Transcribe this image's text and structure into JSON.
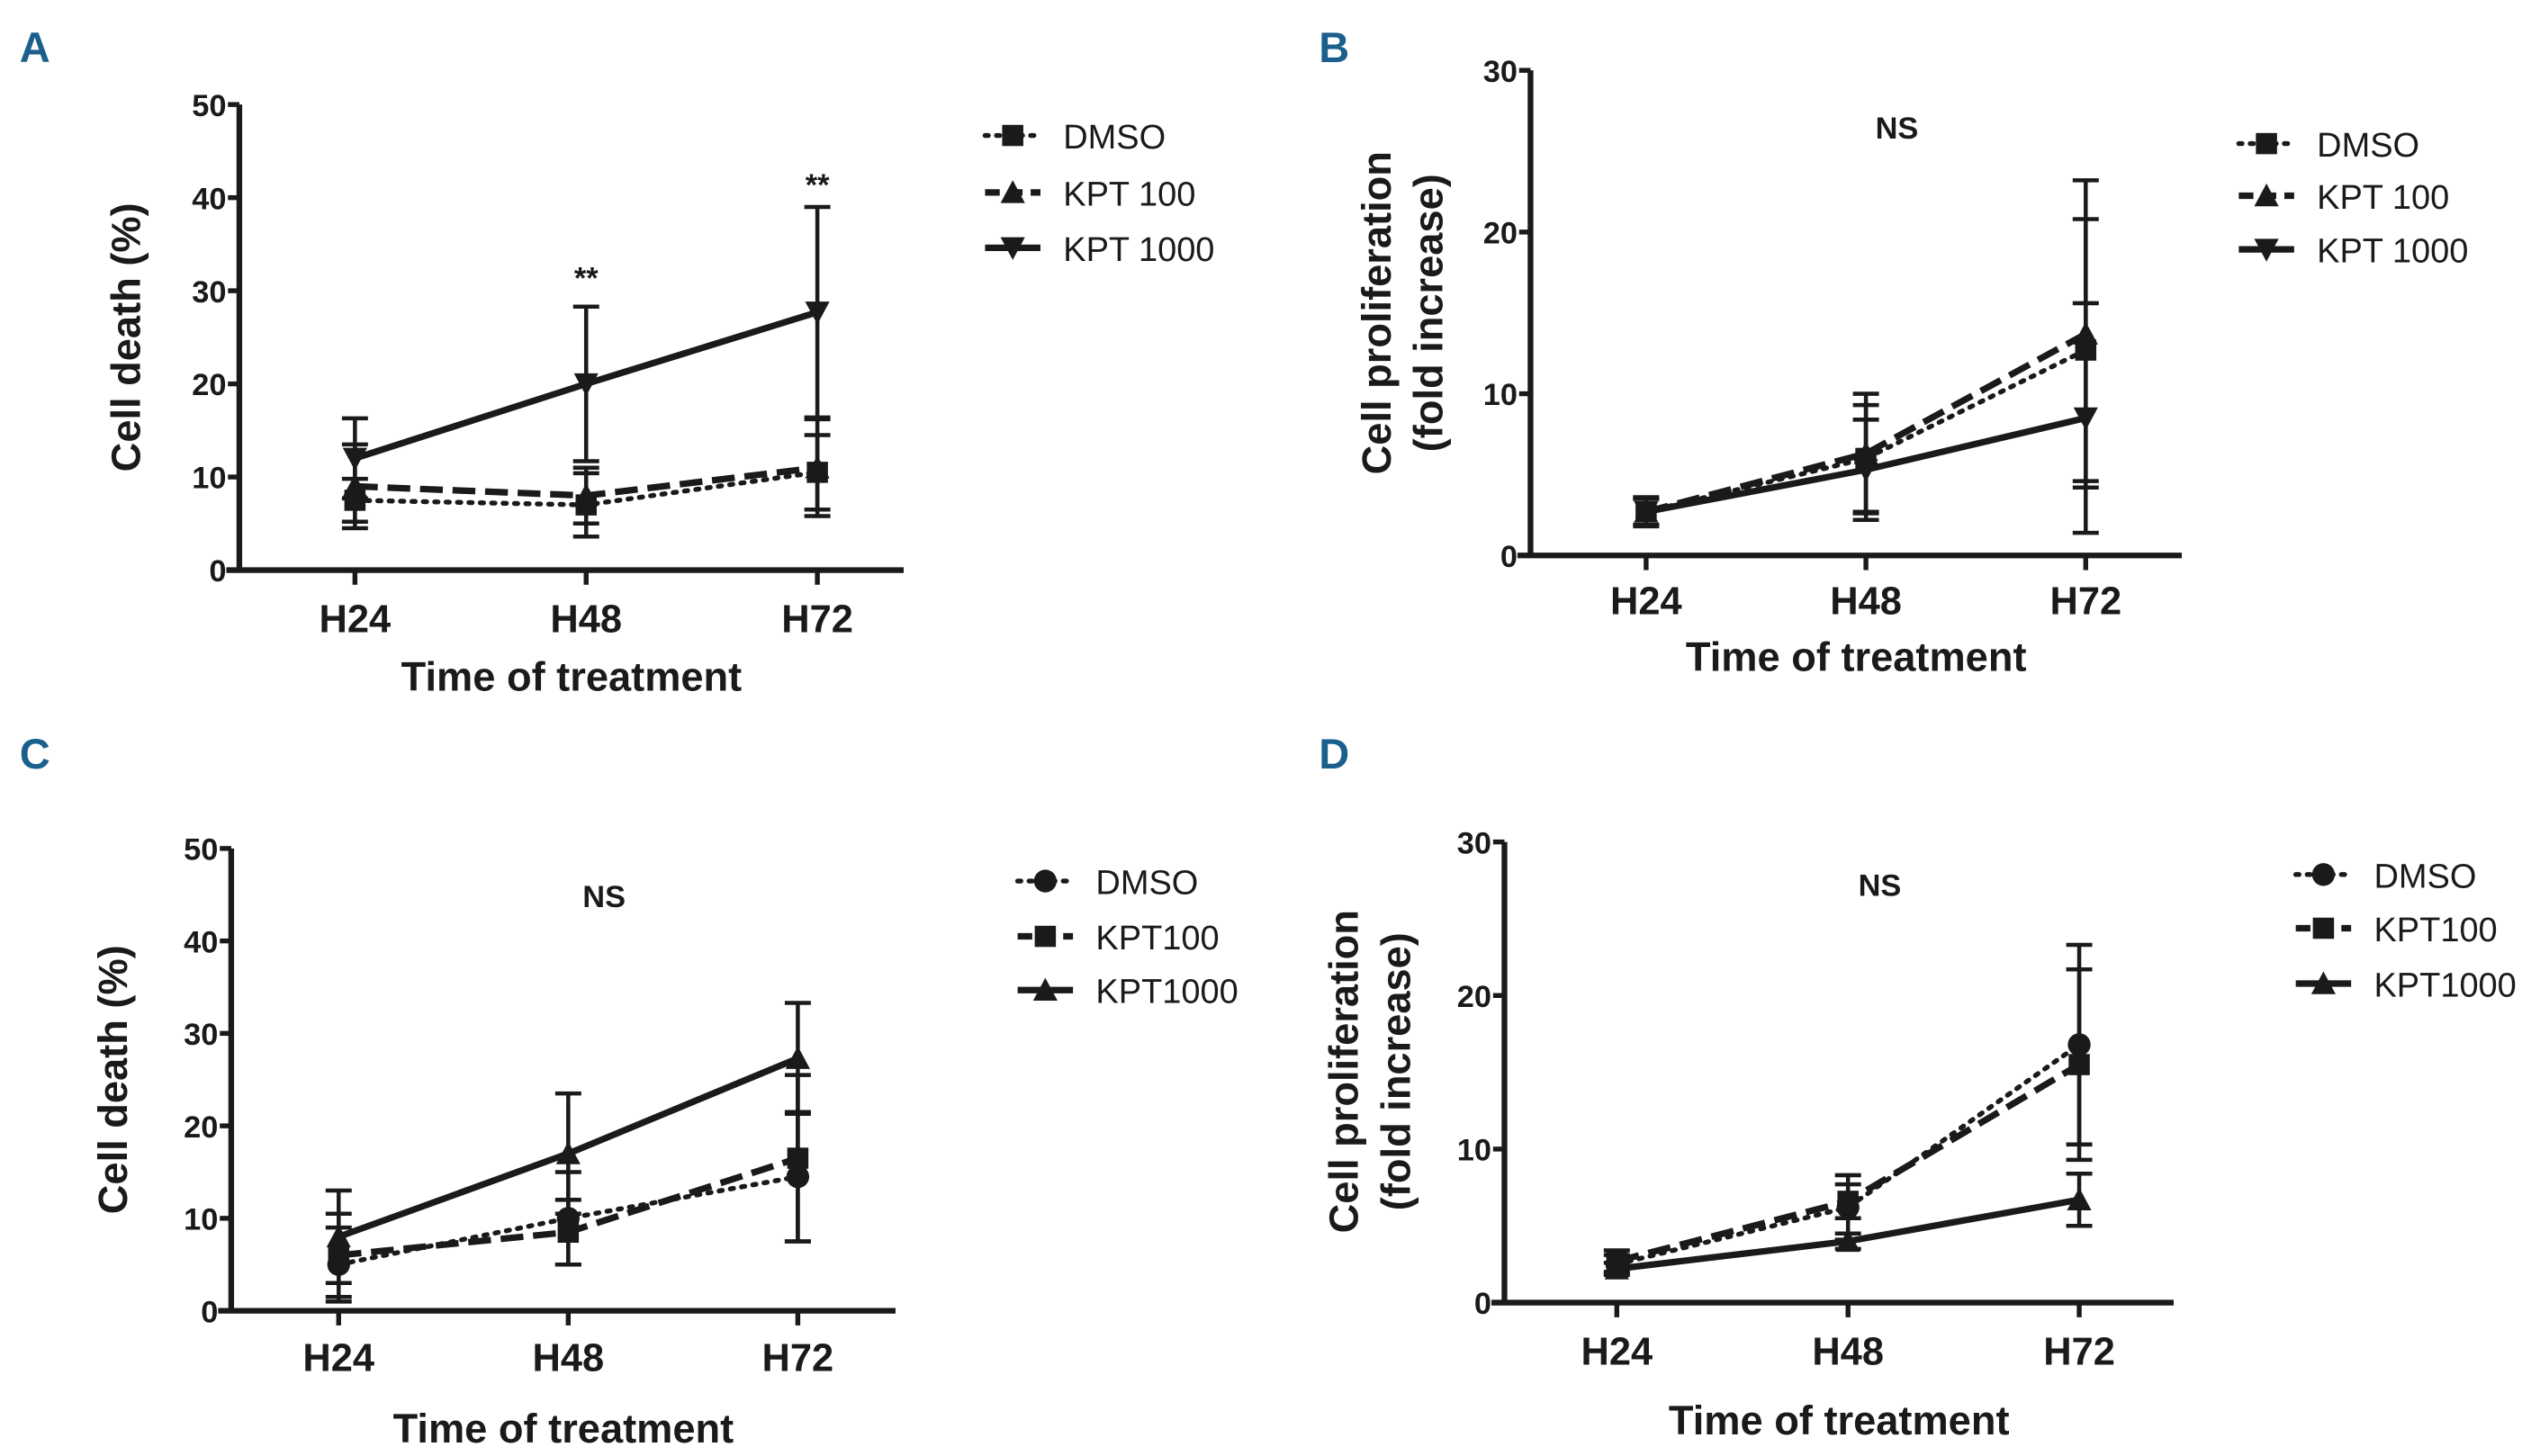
{
  "colors": {
    "panel_label": "#1b5f8c",
    "ink": "#1a1a1a"
  },
  "chart_data": [
    {
      "panel": "A",
      "type": "line",
      "title": "",
      "xlabel": "Time of treatment",
      "ylabel": [
        "Cell death (%)"
      ],
      "categories": [
        "H24",
        "H48",
        "H72"
      ],
      "ylim": [
        0,
        50
      ],
      "yticks": [
        0,
        10,
        20,
        30,
        40,
        50
      ],
      "annotations": [
        {
          "category": "H48",
          "text": "**",
          "y": 32
        },
        {
          "category": "H72",
          "text": "**",
          "y": 42
        }
      ],
      "series": [
        {
          "name": "DMSO",
          "style": "dotted",
          "marker": "square",
          "values": [
            7.5,
            7,
            10.5
          ],
          "error": [
            2.3,
            3.4,
            4.0
          ]
        },
        {
          "name": "KPT 100",
          "style": "dashed",
          "marker": "triangle-up",
          "values": [
            9,
            8,
            11
          ],
          "error": [
            4.5,
            3,
            5.2
          ]
        },
        {
          "name": "KPT 1000",
          "style": "solid",
          "marker": "triangle-down",
          "values": [
            12,
            20,
            27.7
          ],
          "error": [
            4.3,
            8.3,
            11.3
          ]
        }
      ]
    },
    {
      "panel": "B",
      "type": "line",
      "title": "NS",
      "xlabel": "Time of treatment",
      "ylabel": [
        "Cell proliferation",
        "(fold increase)"
      ],
      "categories": [
        "H24",
        "H48",
        "H72"
      ],
      "ylim": [
        0,
        30
      ],
      "yticks": [
        0,
        10,
        20,
        30
      ],
      "annotations": [],
      "series": [
        {
          "name": "DMSO",
          "style": "dotted",
          "marker": "square",
          "values": [
            2.7,
            6,
            12.7
          ],
          "error": [
            0.8,
            3.3,
            8.1
          ]
        },
        {
          "name": "KPT 100",
          "style": "dashed",
          "marker": "triangle-up",
          "values": [
            2.7,
            6.3,
            13.7
          ],
          "error": [
            0.9,
            3.7,
            9.5
          ]
        },
        {
          "name": "KPT 1000",
          "style": "solid",
          "marker": "triangle-down",
          "values": [
            2.7,
            5.3,
            8.5
          ],
          "error": [
            0.8,
            3.1,
            7.1
          ]
        }
      ]
    },
    {
      "panel": "C",
      "type": "line",
      "title": "NS",
      "xlabel": "Time of treatment",
      "ylabel": [
        "Cell death (%)"
      ],
      "categories": [
        "H24",
        "H48",
        "H72"
      ],
      "ylim": [
        0,
        50
      ],
      "yticks": [
        0,
        10,
        20,
        30,
        40,
        50
      ],
      "annotations": [],
      "series": [
        {
          "name": "DMSO",
          "style": "dotted",
          "marker": "circle",
          "values": [
            5,
            10,
            14.5
          ],
          "error": [
            4,
            5,
            7
          ]
        },
        {
          "name": "KPT100",
          "style": "dashed",
          "marker": "square",
          "values": [
            6,
            8.5,
            16.5
          ],
          "error": [
            4.5,
            3.5,
            9
          ]
        },
        {
          "name": "KPT1000",
          "style": "solid",
          "marker": "triangle-up",
          "values": [
            8,
            17,
            27.3
          ],
          "error": [
            5,
            6.5,
            6
          ]
        }
      ]
    },
    {
      "panel": "D",
      "type": "line",
      "title": "NS",
      "xlabel": "Time of treatment",
      "ylabel": [
        "Cell proliferation",
        "(fold increase)"
      ],
      "categories": [
        "H24",
        "H48",
        "H72"
      ],
      "ylim": [
        0,
        30
      ],
      "yticks": [
        0,
        10,
        20,
        30
      ],
      "annotations": [],
      "series": [
        {
          "name": "DMSO",
          "style": "dotted",
          "marker": "circle",
          "values": [
            2.5,
            6.2,
            16.8
          ],
          "error": [
            0.6,
            2.1,
            6.5
          ]
        },
        {
          "name": "KPT100",
          "style": "dashed",
          "marker": "square",
          "values": [
            2.7,
            6.6,
            15.5
          ],
          "error": [
            0.7,
            1.1,
            6.2
          ]
        },
        {
          "name": "KPT1000",
          "style": "solid",
          "marker": "triangle-up",
          "values": [
            2.2,
            4.0,
            6.7
          ],
          "error": [
            0.4,
            0.5,
            1.7
          ]
        }
      ]
    }
  ]
}
